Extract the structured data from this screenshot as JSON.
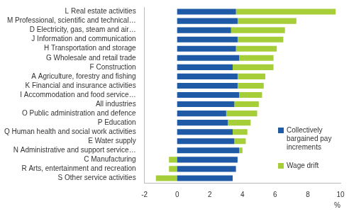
{
  "chart_data": {
    "type": "bar",
    "orientation": "horizontal",
    "stacked": true,
    "grid": false,
    "legend": "right",
    "x_label": "%",
    "categories": [
      "L Real estate activities",
      "M Professional, scientific and technical…",
      "D Electricity, gas, steam and air…",
      "J Information and communication",
      "H Transportation and storage",
      "G Wholesale and retail trade",
      "F Construction",
      "A Agriculture, forestry and fishing",
      "K Financial and insurance activities",
      "I Accommodation and food service…",
      "All industries",
      "O Public administration and defence",
      "P Education",
      "Q Human health and social work activities",
      "E Water supply",
      "N Administrative and support service…",
      "C Manufacturing",
      "R Arts, entertainment and recreation",
      "S Other service activities"
    ],
    "series": [
      {
        "name": "Collectively bargained pay increments",
        "color": "#1f5aa6",
        "values": [
          3.6,
          3.7,
          3.3,
          3.7,
          3.6,
          3.8,
          3.4,
          3.7,
          3.7,
          3.8,
          3.5,
          3.0,
          3.1,
          3.4,
          3.5,
          3.8,
          3.7,
          3.6,
          3.4
        ]
      },
      {
        "name": "Wage drift",
        "color": "#a6ce39",
        "values": [
          6.1,
          3.6,
          3.3,
          2.8,
          2.5,
          2.1,
          2.5,
          1.7,
          1.6,
          1.4,
          1.5,
          1.9,
          1.4,
          0.9,
          0.7,
          0.2,
          -0.5,
          -0.5,
          -1.3
        ]
      }
    ],
    "xlim": [
      -2,
      10
    ],
    "xticks": [
      -2,
      0,
      2,
      4,
      6,
      8,
      10
    ]
  }
}
